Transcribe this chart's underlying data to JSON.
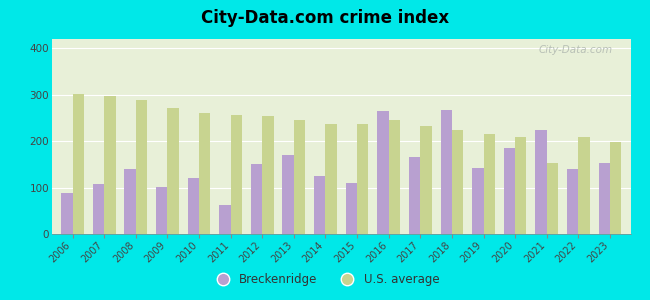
{
  "title": "City-Data.com crime index",
  "years": [
    2006,
    2007,
    2008,
    2009,
    2010,
    2011,
    2012,
    2013,
    2014,
    2015,
    2016,
    2017,
    2018,
    2019,
    2020,
    2021,
    2022,
    2023
  ],
  "breckenridge": [
    88,
    107,
    140,
    102,
    120,
    62,
    150,
    170,
    125,
    110,
    265,
    165,
    268,
    143,
    185,
    225,
    140,
    152
  ],
  "us_average": [
    302,
    297,
    288,
    272,
    260,
    256,
    254,
    245,
    238,
    238,
    245,
    233,
    225,
    215,
    208,
    153,
    208,
    198
  ],
  "breck_color": "#b8a0d0",
  "us_color": "#c8d490",
  "background_plot_top": "#e8f0d8",
  "background_plot_bottom": "#d8edd8",
  "background_fig": "#00e8e8",
  "ylim": [
    0,
    420
  ],
  "yticks": [
    0,
    100,
    200,
    300,
    400
  ],
  "bar_width": 0.36,
  "legend_breck": "Breckenridge",
  "legend_us": "U.S. average",
  "watermark": "City-Data.com"
}
